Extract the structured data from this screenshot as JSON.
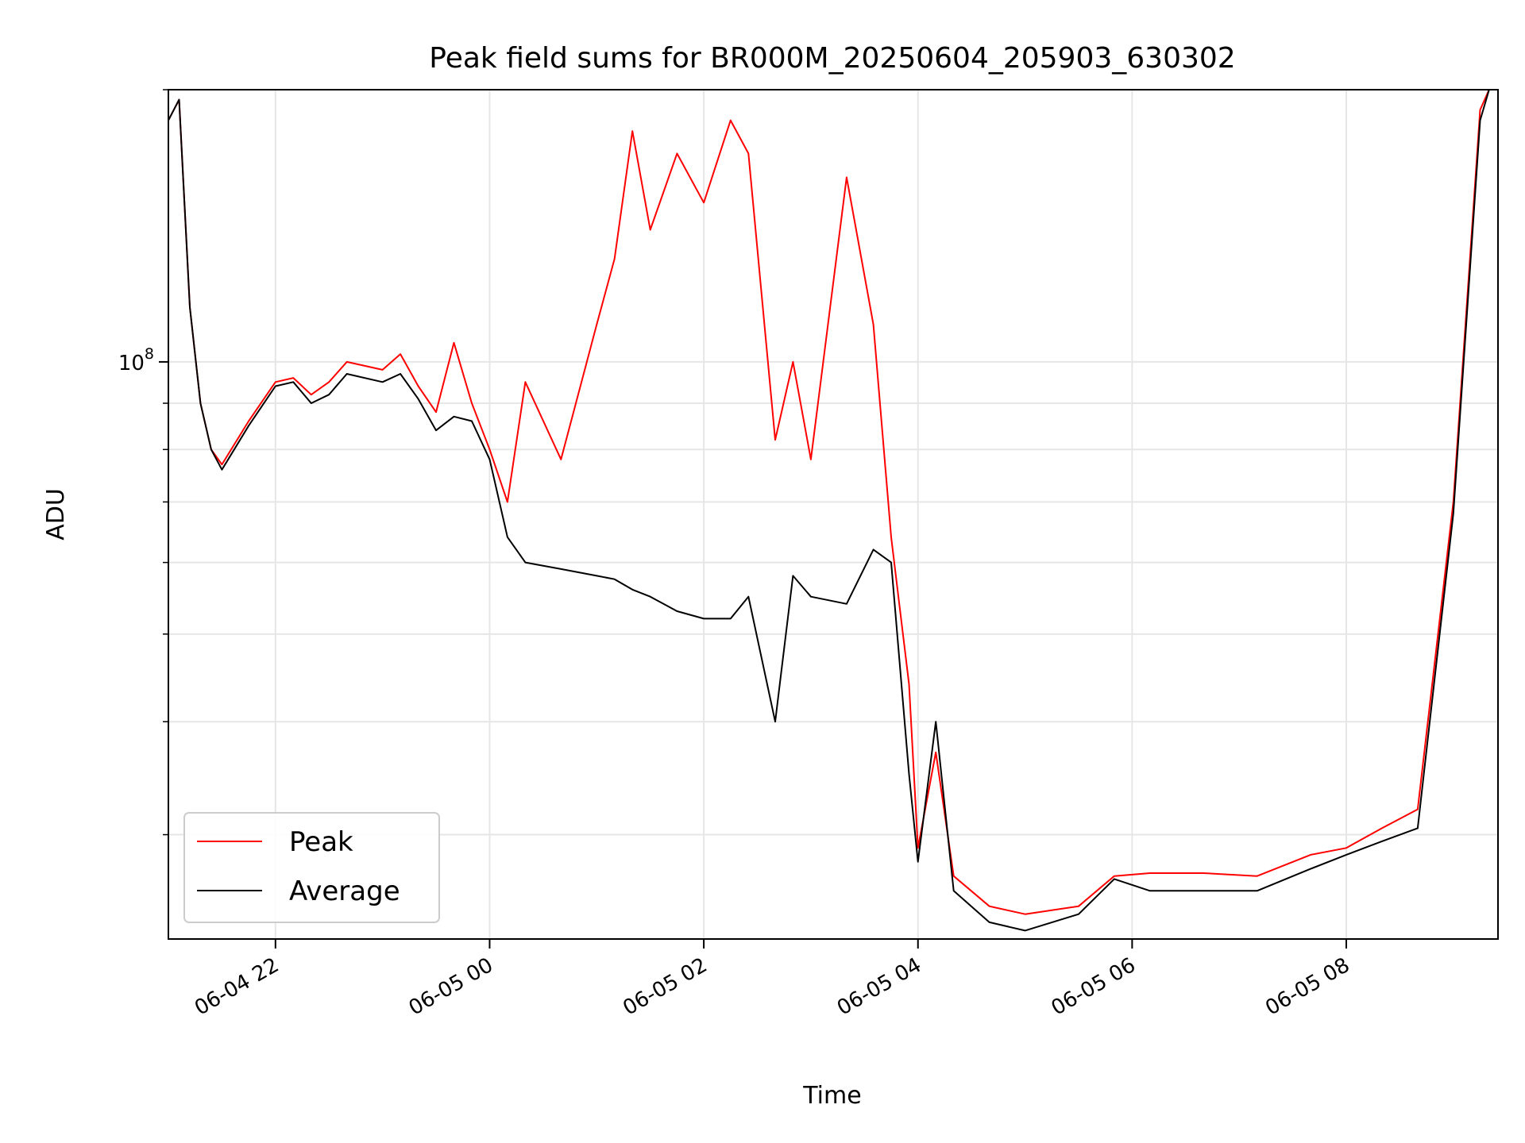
{
  "chart_data": {
    "type": "line",
    "title": "Peak field sums for BR000M_20250604_205903_630302",
    "xlabel": "Time",
    "ylabel": "ADU",
    "yscale": "log",
    "grid": true,
    "legend_position": "bottom-left",
    "xlim": [
      "2025-06-04 21:00",
      "2025-06-05 09:25"
    ],
    "ylim": [
      23000000,
      200000000
    ],
    "x_ticks": [
      {
        "value": "2025-06-04 22:00",
        "label": "06-04 22"
      },
      {
        "value": "2025-06-05 00:00",
        "label": "06-05 00"
      },
      {
        "value": "2025-06-05 02:00",
        "label": "06-05 02"
      },
      {
        "value": "2025-06-05 04:00",
        "label": "06-05 04"
      },
      {
        "value": "2025-06-05 06:00",
        "label": "06-05 06"
      },
      {
        "value": "2025-06-05 08:00",
        "label": "06-05 08"
      }
    ],
    "y_ticks": [
      {
        "value": 100000000,
        "label": "10",
        "exponent": "8"
      }
    ],
    "series": [
      {
        "name": "Peak",
        "color": "#ff0000",
        "points": [
          [
            "2025-06-04 21:00",
            185000000
          ],
          [
            "2025-06-04 21:06",
            195000000
          ],
          [
            "2025-06-04 21:12",
            115000000
          ],
          [
            "2025-06-04 21:18",
            90000000
          ],
          [
            "2025-06-04 21:24",
            80000000
          ],
          [
            "2025-06-04 21:30",
            77000000
          ],
          [
            "2025-06-04 21:45",
            86000000
          ],
          [
            "2025-06-04 22:00",
            95000000
          ],
          [
            "2025-06-04 22:10",
            96000000
          ],
          [
            "2025-06-04 22:20",
            92000000
          ],
          [
            "2025-06-04 22:30",
            95000000
          ],
          [
            "2025-06-04 22:40",
            100000000
          ],
          [
            "2025-06-04 23:00",
            98000000
          ],
          [
            "2025-06-04 23:10",
            102000000
          ],
          [
            "2025-06-04 23:20",
            94000000
          ],
          [
            "2025-06-04 23:30",
            88000000
          ],
          [
            "2025-06-04 23:40",
            105000000
          ],
          [
            "2025-06-04 23:50",
            90000000
          ],
          [
            "2025-06-05 00:00",
            80000000
          ],
          [
            "2025-06-05 00:10",
            70000000
          ],
          [
            "2025-06-05 00:20",
            95000000
          ],
          [
            "2025-06-05 00:40",
            78000000
          ],
          [
            "2025-06-05 01:00",
            110000000
          ],
          [
            "2025-06-05 01:10",
            130000000
          ],
          [
            "2025-06-05 01:20",
            180000000
          ],
          [
            "2025-06-05 01:30",
            140000000
          ],
          [
            "2025-06-05 01:45",
            170000000
          ],
          [
            "2025-06-05 02:00",
            150000000
          ],
          [
            "2025-06-05 02:15",
            185000000
          ],
          [
            "2025-06-05 02:25",
            170000000
          ],
          [
            "2025-06-05 02:40",
            82000000
          ],
          [
            "2025-06-05 02:50",
            100000000
          ],
          [
            "2025-06-05 03:00",
            78000000
          ],
          [
            "2025-06-05 03:20",
            160000000
          ],
          [
            "2025-06-05 03:35",
            110000000
          ],
          [
            "2025-06-05 03:45",
            64000000
          ],
          [
            "2025-06-05 03:55",
            44000000
          ],
          [
            "2025-06-05 04:00",
            29000000
          ],
          [
            "2025-06-05 04:10",
            37000000
          ],
          [
            "2025-06-05 04:20",
            27000000
          ],
          [
            "2025-06-05 04:40",
            25000000
          ],
          [
            "2025-06-05 05:00",
            24500000
          ],
          [
            "2025-06-05 05:30",
            25000000
          ],
          [
            "2025-06-05 05:50",
            27000000
          ],
          [
            "2025-06-05 06:10",
            27200000
          ],
          [
            "2025-06-05 06:40",
            27200000
          ],
          [
            "2025-06-05 07:10",
            27000000
          ],
          [
            "2025-06-05 07:40",
            28500000
          ],
          [
            "2025-06-05 08:00",
            29000000
          ],
          [
            "2025-06-05 08:20",
            30500000
          ],
          [
            "2025-06-05 08:40",
            32000000
          ],
          [
            "2025-06-05 09:00",
            70000000
          ],
          [
            "2025-06-05 09:15",
            190000000
          ],
          [
            "2025-06-05 09:20",
            200000000
          ]
        ]
      },
      {
        "name": "Average",
        "color": "#000000",
        "points": [
          [
            "2025-06-04 21:00",
            185000000
          ],
          [
            "2025-06-04 21:06",
            195000000
          ],
          [
            "2025-06-04 21:12",
            115000000
          ],
          [
            "2025-06-04 21:18",
            90000000
          ],
          [
            "2025-06-04 21:24",
            80000000
          ],
          [
            "2025-06-04 21:30",
            76000000
          ],
          [
            "2025-06-04 21:45",
            85000000
          ],
          [
            "2025-06-04 22:00",
            94000000
          ],
          [
            "2025-06-04 22:10",
            95000000
          ],
          [
            "2025-06-04 22:20",
            90000000
          ],
          [
            "2025-06-04 22:30",
            92000000
          ],
          [
            "2025-06-04 22:40",
            97000000
          ],
          [
            "2025-06-04 23:00",
            95000000
          ],
          [
            "2025-06-04 23:10",
            97000000
          ],
          [
            "2025-06-04 23:20",
            91000000
          ],
          [
            "2025-06-04 23:30",
            84000000
          ],
          [
            "2025-06-04 23:40",
            87000000
          ],
          [
            "2025-06-04 23:50",
            86000000
          ],
          [
            "2025-06-05 00:00",
            78000000
          ],
          [
            "2025-06-05 00:10",
            64000000
          ],
          [
            "2025-06-05 00:20",
            60000000
          ],
          [
            "2025-06-05 00:40",
            59000000
          ],
          [
            "2025-06-05 01:00",
            58000000
          ],
          [
            "2025-06-05 01:10",
            57500000
          ],
          [
            "2025-06-05 01:20",
            56000000
          ],
          [
            "2025-06-05 01:30",
            55000000
          ],
          [
            "2025-06-05 01:45",
            53000000
          ],
          [
            "2025-06-05 02:00",
            52000000
          ],
          [
            "2025-06-05 02:15",
            52000000
          ],
          [
            "2025-06-05 02:25",
            55000000
          ],
          [
            "2025-06-05 02:40",
            40000000
          ],
          [
            "2025-06-05 02:50",
            58000000
          ],
          [
            "2025-06-05 03:00",
            55000000
          ],
          [
            "2025-06-05 03:20",
            54000000
          ],
          [
            "2025-06-05 03:35",
            62000000
          ],
          [
            "2025-06-05 03:45",
            60000000
          ],
          [
            "2025-06-05 03:55",
            35000000
          ],
          [
            "2025-06-05 04:00",
            28000000
          ],
          [
            "2025-06-05 04:10",
            40000000
          ],
          [
            "2025-06-05 04:20",
            26000000
          ],
          [
            "2025-06-05 04:40",
            24000000
          ],
          [
            "2025-06-05 05:00",
            23500000
          ],
          [
            "2025-06-05 05:30",
            24500000
          ],
          [
            "2025-06-05 05:50",
            26800000
          ],
          [
            "2025-06-05 06:10",
            26000000
          ],
          [
            "2025-06-05 06:40",
            26000000
          ],
          [
            "2025-06-05 07:10",
            26000000
          ],
          [
            "2025-06-05 07:40",
            27500000
          ],
          [
            "2025-06-05 08:00",
            28500000
          ],
          [
            "2025-06-05 08:20",
            29500000
          ],
          [
            "2025-06-05 08:40",
            30500000
          ],
          [
            "2025-06-05 09:00",
            68000000
          ],
          [
            "2025-06-05 09:15",
            185000000
          ],
          [
            "2025-06-05 09:20",
            200000000
          ]
        ]
      }
    ]
  }
}
